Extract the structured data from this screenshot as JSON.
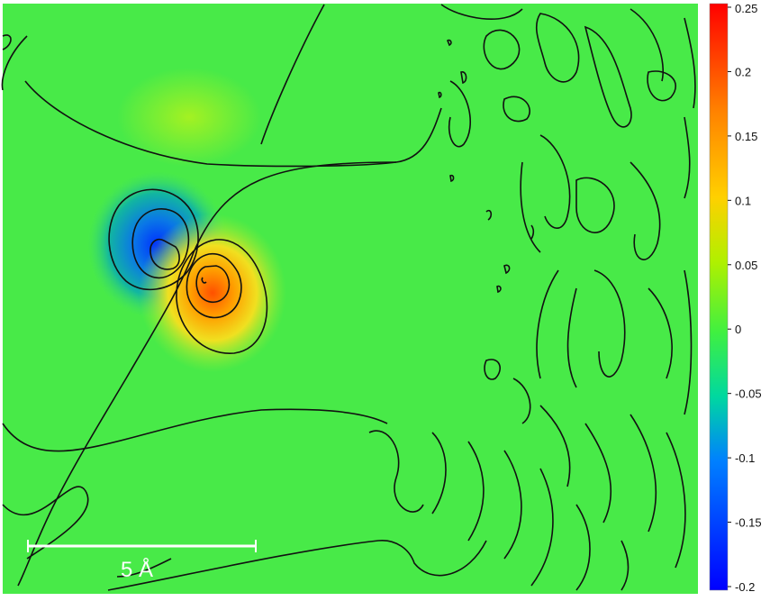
{
  "chart_data": {
    "type": "heatmap",
    "title": "",
    "xlabel": "",
    "ylabel": "",
    "colorbar": {
      "range": [
        -0.2,
        0.25
      ],
      "ticks": [
        0.25,
        0.2,
        0.15,
        0.1,
        0.05,
        0,
        -0.05,
        -0.1,
        -0.15,
        -0.2
      ],
      "tick_labels": [
        "0.25",
        "0.2",
        "0.15",
        "0.1",
        "0.05",
        "0",
        "-0.05",
        "-0.1",
        "-0.15",
        "-0.2"
      ],
      "colormap": [
        "#0000ff",
        "#00aaff",
        "#00e07a",
        "#40f040",
        "#c8f000",
        "#ffd000",
        "#ff7000",
        "#ff0000"
      ]
    },
    "background_value": 0,
    "features": [
      {
        "name": "negative lobe",
        "min_value": -0.18
      },
      {
        "name": "positive lobe",
        "max_value": 0.2
      },
      {
        "name": "weak positive region",
        "value": 0.06
      }
    ],
    "scale_bar": {
      "label": "5 Å",
      "length_angstrom": 5
    },
    "grid": false,
    "contours": true
  }
}
